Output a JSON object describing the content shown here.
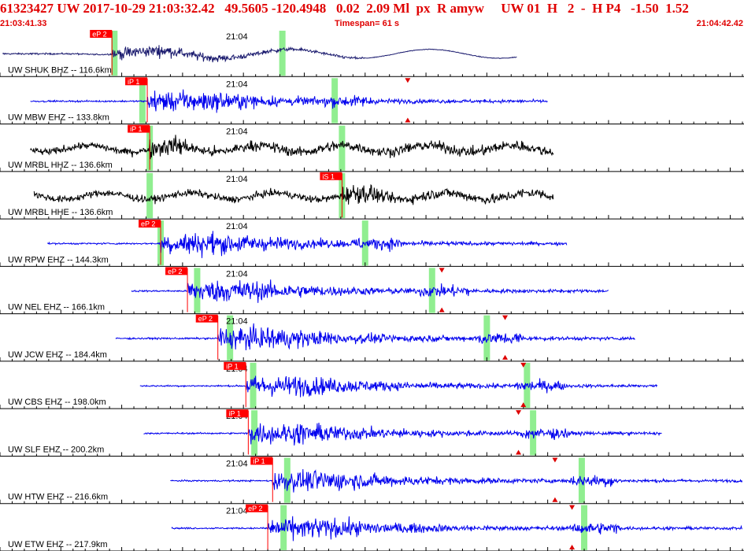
{
  "header": {
    "line1": "61323427 UW 2017-10-29 21:03:32.42   49.5605 -120.4948   0.02  2.09 Ml  px  R amyw     UW 01  H   2  -  H P4   -1.50  1.52",
    "start_time": "21:03:41.33",
    "timespan": "Timespan=  61 s",
    "end_time": "21:04:42.42"
  },
  "chart_data": {
    "type": "line",
    "title": "61323427 UW 2017-10-29 21:03:32.42   49.5605 -120.4948   0.02  2.09 Ml  px  R amyw     UW 01  H   2  -  H P4   -1.50  1.52",
    "x_unit": "seconds after 21:03:41.33",
    "xlim": [
      0,
      61
    ],
    "grid": true,
    "minute_tick_label": "21:04",
    "minute_tick_time": 18.7,
    "colors": {
      "header": "#e00000",
      "pick": "#ff0000",
      "pick_marker": "#dd0000",
      "theoretical_window": "#90ee90",
      "grid": "#000000"
    },
    "traces": [
      {
        "label": "UW SHUK BHZ -- 116.6km",
        "color": "#1a1a6e",
        "start": 0.2,
        "end": 42.5,
        "amp": 0.42,
        "style": "longperiod",
        "picks": [
          {
            "label": "eP 2",
            "time": 9.2
          }
        ],
        "windows": [
          9.4,
          23.2
        ],
        "marker_times": []
      },
      {
        "label": "UW MBW EHZ -- 133.8km",
        "color": "#0000ee",
        "start": 2.5,
        "end": 45.0,
        "amp": 0.7,
        "style": "sp",
        "picks": [
          {
            "label": "iP 1",
            "time": 12.1
          }
        ],
        "windows": [
          11.7,
          27.5
        ],
        "marker_times": [
          33.5
        ]
      },
      {
        "label": "UW MRBL HHZ -- 136.6km",
        "color": "#000000",
        "start": 2.5,
        "end": 45.5,
        "amp": 0.75,
        "style": "bb",
        "picks": [
          {
            "label": "iP 1",
            "time": 12.3
          }
        ],
        "windows": [
          12.3,
          28.1
        ],
        "marker_times": []
      },
      {
        "label": "UW MRBL HHE -- 136.6km",
        "color": "#000000",
        "start": 2.8,
        "end": 45.5,
        "amp": 0.75,
        "style": "bb",
        "picks": [
          {
            "label": "iS 1",
            "time": 28.1
          }
        ],
        "windows": [
          12.3,
          28.1
        ],
        "marker_times": []
      },
      {
        "label": "UW RPW EHZ -- 144.3km",
        "color": "#0000ee",
        "start": 3.9,
        "end": 46.6,
        "amp": 0.75,
        "style": "sp",
        "picks": [
          {
            "label": "eP 2",
            "time": 13.2
          }
        ],
        "windows": [
          13.2,
          30.0
        ],
        "marker_times": []
      },
      {
        "label": "UW NEL EHZ -- 166.1km",
        "color": "#0000ee",
        "start": 10.8,
        "end": 50.0,
        "amp": 0.75,
        "style": "sp",
        "picks": [
          {
            "label": "eP 2",
            "time": 15.4
          }
        ],
        "windows": [
          16.2,
          35.5
        ],
        "marker_times": [
          36.3
        ]
      },
      {
        "label": "UW JCW EHZ -- 184.4km",
        "color": "#0000ee",
        "start": 9.5,
        "end": 52.2,
        "amp": 0.75,
        "style": "sp",
        "picks": [
          {
            "label": "eP 2",
            "time": 17.9
          }
        ],
        "windows": [
          18.9,
          40.0
        ],
        "marker_times": [
          41.5
        ]
      },
      {
        "label": "UW CBS EHZ -- 198.0km",
        "color": "#0000ee",
        "start": 11.5,
        "end": 54.0,
        "amp": 0.7,
        "style": "sp",
        "picks": [
          {
            "label": "iP 1",
            "time": 20.2
          }
        ],
        "windows": [
          20.8,
          43.3
        ],
        "marker_times": [
          43.0
        ]
      },
      {
        "label": "UW SLF EHZ -- 200.2km",
        "color": "#0000ee",
        "start": 11.8,
        "end": 54.4,
        "amp": 0.7,
        "style": "sp",
        "picks": [
          {
            "label": "iP 1",
            "time": 20.4
          }
        ],
        "windows": [
          20.9,
          43.8
        ],
        "marker_times": [
          42.6
        ]
      },
      {
        "label": "UW HTW EHZ -- 216.6km",
        "color": "#0000ee",
        "start": 14.0,
        "end": 61.0,
        "amp": 0.7,
        "style": "sp",
        "picks": [
          {
            "label": "iP 1",
            "time": 22.4
          }
        ],
        "windows": [
          23.6,
          47.8
        ],
        "marker_times": [
          45.6
        ]
      },
      {
        "label": "UW ETW EHZ -- 217.9km",
        "color": "#0000ee",
        "start": 14.1,
        "end": 61.0,
        "amp": 0.7,
        "style": "sp",
        "picks": [
          {
            "label": "eP 2",
            "time": 22.0
          }
        ],
        "windows": [
          23.3,
          48.0
        ],
        "marker_times": [
          47.0
        ]
      }
    ]
  }
}
